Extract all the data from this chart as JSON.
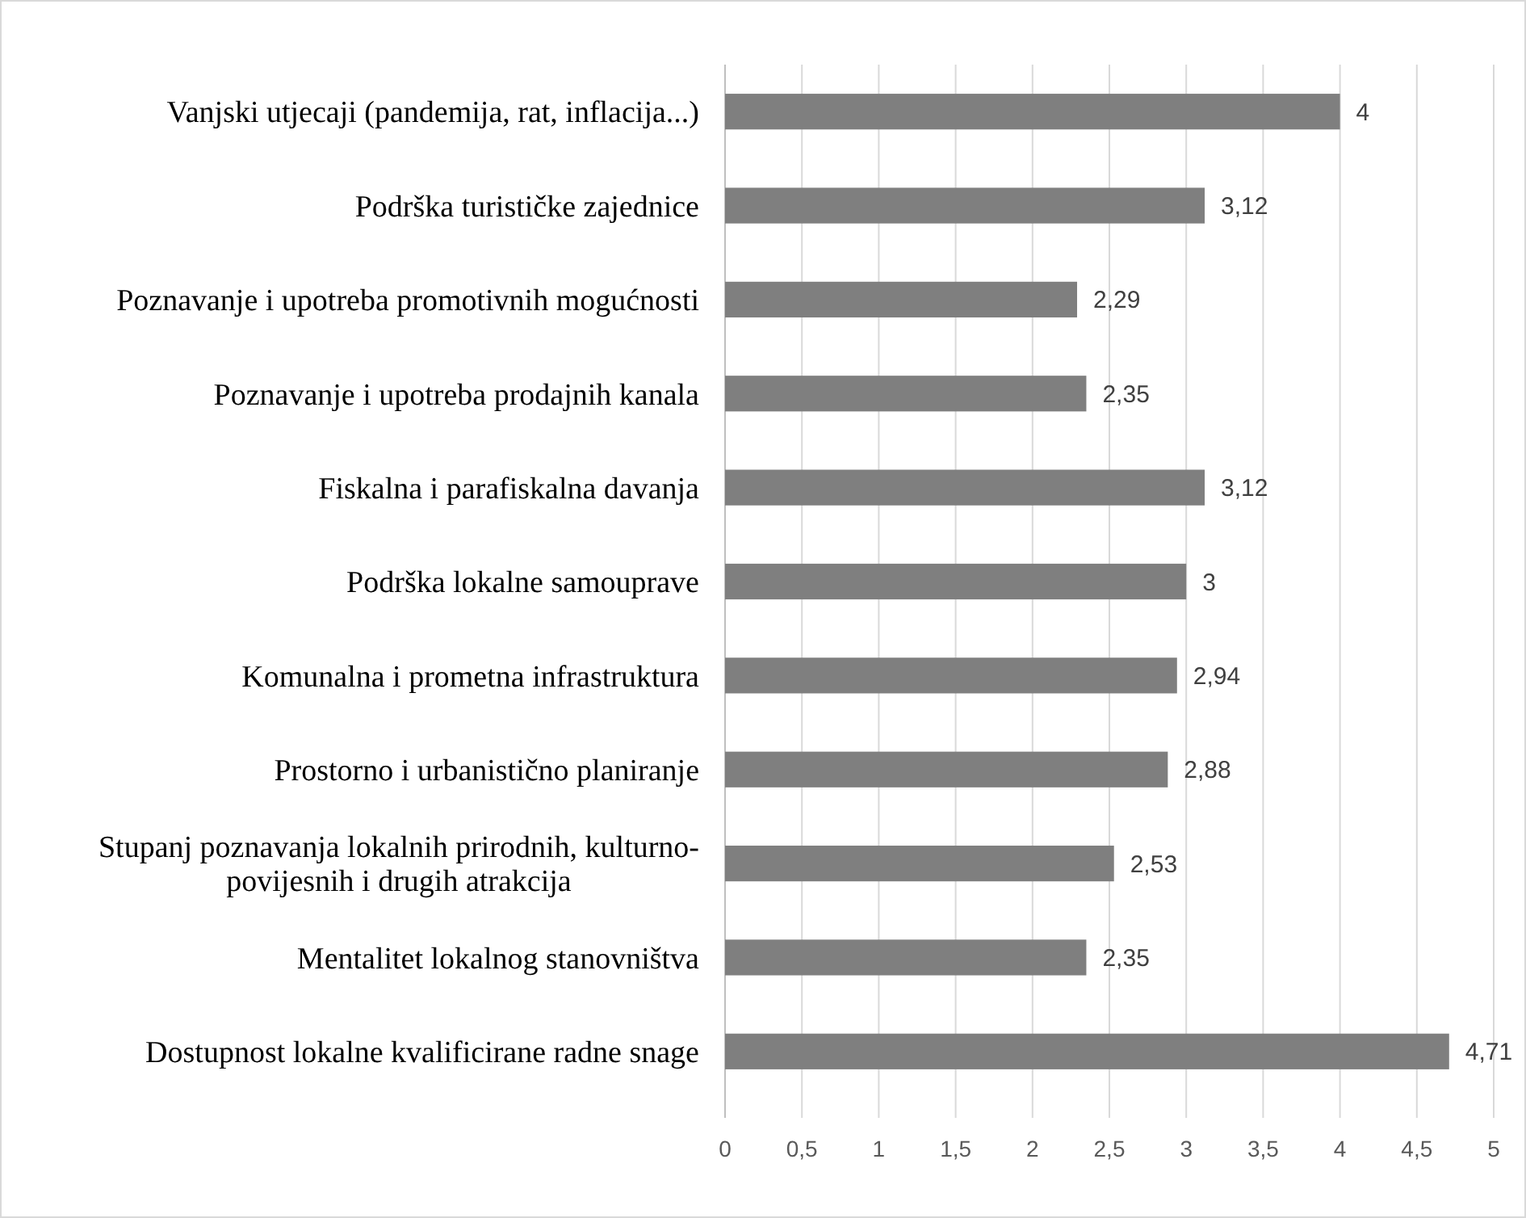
{
  "chart_data": {
    "type": "bar",
    "orientation": "horizontal",
    "categories": [
      "Vanjski utjecaji (pandemija, rat, inflacija...)",
      "Podrška turističke zajednice",
      "Poznavanje i upotreba promotivnih mogućnosti",
      "Poznavanje i upotreba prodajnih kanala",
      "Fiskalna i parafiskalna davanja",
      "Podrška lokalne samouprave",
      "Komunalna i prometna infrastruktura",
      "Prostorno i urbanistično planiranje",
      "Stupanj poznavanja lokalnih prirodnih, kulturno-povijesnih i drugih atrakcija",
      "Mentalitet lokalnog stanovništva",
      "Dostupnost lokalne kvalificirane radne snage"
    ],
    "values": [
      4,
      3.12,
      2.29,
      2.35,
      3.12,
      3,
      2.94,
      2.88,
      2.53,
      2.35,
      4.71
    ],
    "value_labels": [
      "4",
      "3,12",
      "2,29",
      "2,35",
      "3,12",
      "3",
      "2,94",
      "2,88",
      "2,53",
      "2,35",
      "4,71"
    ],
    "color": "#7f7f7f",
    "xlim": [
      0,
      5
    ],
    "xticks": [
      0,
      {
        "value": 0.5,
        "label": "0,5"
      },
      1,
      {
        "value": 1.5,
        "label": "1,5"
      },
      2,
      {
        "value": 2.5,
        "label": "2,5"
      },
      3,
      {
        "value": 3.5,
        "label": "3,5"
      },
      4,
      {
        "value": 4.5,
        "label": "4,5"
      },
      5
    ],
    "grid": "x"
  }
}
